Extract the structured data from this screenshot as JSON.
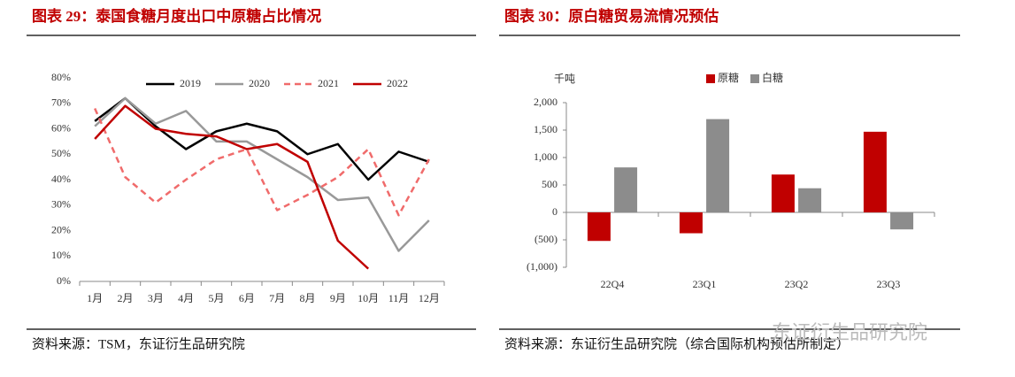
{
  "chart_data": [
    {
      "type": "line",
      "title": "图表 29：泰国食糖月度出口中原糖占比情况",
      "categories": [
        "1月",
        "2月",
        "3月",
        "4月",
        "5月",
        "6月",
        "7月",
        "8月",
        "9月",
        "10月",
        "11月",
        "12月"
      ],
      "series": [
        {
          "name": "2019",
          "color": "#000000",
          "values": [
            63,
            72,
            61,
            52,
            59,
            62,
            59,
            50,
            54,
            40,
            51,
            47
          ]
        },
        {
          "name": "2020",
          "color": "#999999",
          "values": [
            61,
            72,
            62,
            67,
            55,
            55,
            48,
            41,
            32,
            33,
            12,
            24
          ]
        },
        {
          "name": "2021",
          "color": "#f06b6b",
          "dashed": true,
          "values": [
            68,
            41,
            31,
            40,
            48,
            52,
            28,
            34,
            41,
            52,
            26,
            48
          ]
        },
        {
          "name": "2022",
          "color": "#c00000",
          "values": [
            56,
            69,
            60,
            58,
            57,
            52,
            54,
            47,
            16,
            5,
            null,
            null
          ]
        }
      ],
      "ylim": [
        0,
        80
      ],
      "yticks": [
        {
          "value": 0,
          "label": "0%"
        },
        {
          "value": 10,
          "label": "10%"
        },
        {
          "value": 20,
          "label": "20%"
        },
        {
          "value": 30,
          "label": "30%"
        },
        {
          "value": 40,
          "label": "40%"
        },
        {
          "value": 50,
          "label": "50%"
        },
        {
          "value": 60,
          "label": "60%"
        },
        {
          "value": 70,
          "label": "70%"
        },
        {
          "value": 80,
          "label": "80%"
        }
      ],
      "legend": "top",
      "source": "资料来源：TSM，东证衍生品研究院"
    },
    {
      "type": "bar",
      "title": "图表 30：原白糖贸易流情况预估",
      "y_label": "千吨",
      "categories": [
        "22Q4",
        "23Q1",
        "23Q2",
        "23Q3"
      ],
      "series": [
        {
          "name": "原糖",
          "color": "#c00000",
          "values": [
            -520,
            -380,
            690,
            1470
          ]
        },
        {
          "name": "白糖",
          "color": "#8c8c8c",
          "values": [
            820,
            1700,
            440,
            -310
          ]
        }
      ],
      "ylim": [
        -1000,
        2000
      ],
      "yticks": [
        {
          "value": -1000,
          "label": "(1,000)"
        },
        {
          "value": -500,
          "label": "(500)"
        },
        0,
        {
          "value": 500,
          "label": "500"
        },
        {
          "value": 1000,
          "label": "1,000"
        },
        {
          "value": 1500,
          "label": "1,500"
        },
        {
          "value": 2000,
          "label": "2,000"
        }
      ],
      "legend": "top",
      "source": "资料来源：东证衍生品研究院（综合国际机构预估所制定）"
    }
  ],
  "watermark": "东证衍生品研究院"
}
